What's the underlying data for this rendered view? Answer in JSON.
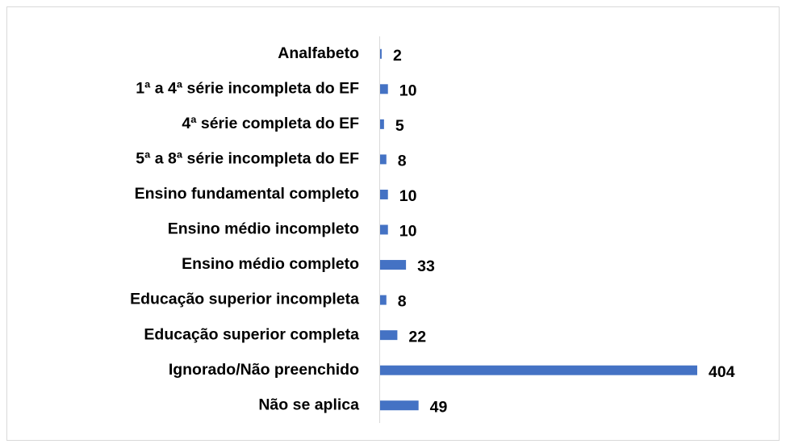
{
  "chart_data": {
    "type": "bar",
    "orientation": "horizontal",
    "categories": [
      "Analfabeto",
      "1ª a 4ª série incompleta do EF",
      "4ª série completa do EF",
      "5ª a 8ª série incompleta do EF",
      "Ensino fundamental completo",
      "Ensino médio incompleto",
      "Ensino médio completo",
      "Educação superior incompleta",
      "Educação superior completa",
      "Ignorado/Não preenchido",
      "Não se aplica"
    ],
    "values": [
      2,
      10,
      5,
      8,
      10,
      10,
      33,
      8,
      22,
      404,
      49
    ],
    "color": "#4472c4",
    "xlim": [
      0,
      404
    ]
  }
}
